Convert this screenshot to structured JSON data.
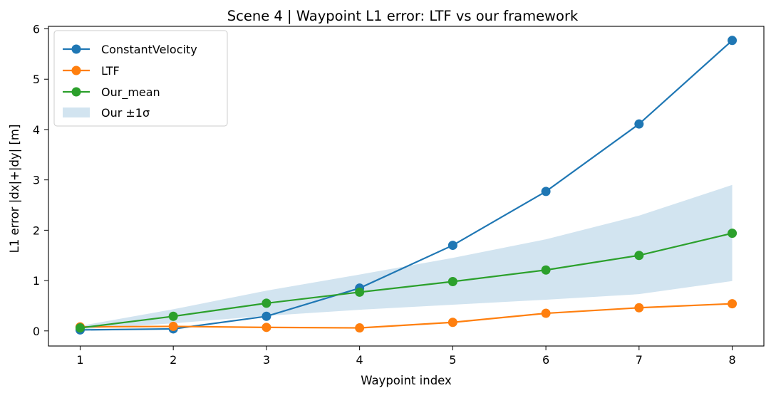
{
  "chart_data": {
    "type": "line",
    "title": "Scene 4 | Waypoint L1 error: LTF vs our framework",
    "xlabel": "Waypoint index",
    "ylabel": "L1 error |dx|+|dy| [m]",
    "x": [
      1,
      2,
      3,
      4,
      5,
      6,
      7,
      8
    ],
    "xlim": [
      0.66,
      8.34
    ],
    "ylim": [
      -0.3,
      6.05
    ],
    "xticks": [
      1,
      2,
      3,
      4,
      5,
      6,
      7,
      8
    ],
    "yticks": [
      0,
      1,
      2,
      3,
      4,
      5,
      6
    ],
    "grid": false,
    "legend_position": "top-left",
    "series": [
      {
        "name": "ConstantVelocity",
        "color": "#1f77b4",
        "values": [
          0.02,
          0.04,
          0.29,
          0.85,
          1.7,
          2.77,
          4.11,
          5.77
        ]
      },
      {
        "name": "LTF",
        "color": "#ff7f0e",
        "values": [
          0.08,
          0.09,
          0.07,
          0.06,
          0.17,
          0.35,
          0.46,
          0.54
        ]
      },
      {
        "name": "Our_mean",
        "color": "#2ca02c",
        "values": [
          0.06,
          0.29,
          0.55,
          0.77,
          0.98,
          1.21,
          1.5,
          1.94
        ]
      }
    ],
    "band": {
      "name": "Our ±1σ",
      "color": "#1f77b4",
      "opacity": 0.2,
      "lower": [
        0.03,
        0.15,
        0.3,
        0.42,
        0.52,
        0.62,
        0.73,
        0.99
      ],
      "upper": [
        0.1,
        0.43,
        0.8,
        1.12,
        1.45,
        1.82,
        2.29,
        2.9
      ]
    }
  }
}
